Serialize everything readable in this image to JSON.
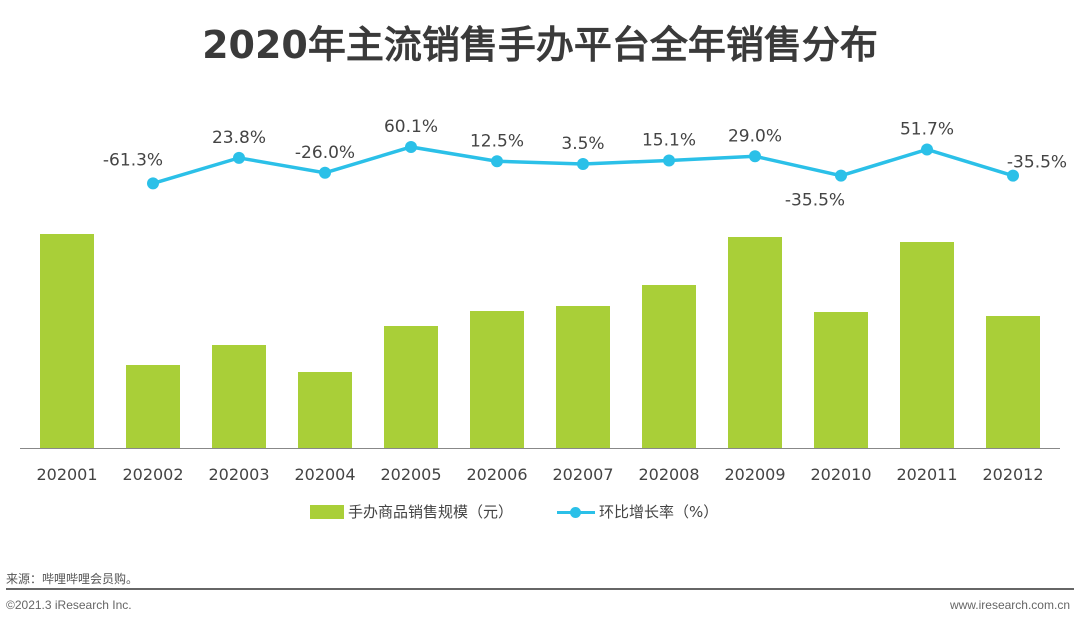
{
  "chart_data": {
    "type": "bar+line",
    "title": "2020年主流销售手办平台全年销售分布",
    "categories": [
      "202001",
      "202002",
      "202003",
      "202004",
      "202005",
      "202006",
      "202007",
      "202008",
      "202009",
      "202010",
      "202011",
      "202012"
    ],
    "series": [
      {
        "name": "手办商品销售规模（元）",
        "type": "bar",
        "color": "#a9cf38",
        "values": [
          214,
          83,
          103,
          76,
          122,
          137,
          142,
          163,
          211,
          136,
          206,
          132
        ]
      },
      {
        "name": "环比增长率（%）",
        "type": "line",
        "color": "#2bc0e8",
        "values": [
          null,
          -61.3,
          23.8,
          -26.0,
          60.1,
          12.5,
          3.5,
          15.1,
          29.0,
          -35.5,
          51.7,
          -35.5
        ],
        "labels": [
          "",
          "-61.3%",
          "23.8%",
          "-26.0%",
          "60.1%",
          "12.5%",
          "3.5%",
          "15.1%",
          "29.0%",
          "-35.5%",
          "51.7%",
          "-35.5%"
        ]
      }
    ],
    "bar_values_note_visible": false,
    "grid": false,
    "legend": "bottom"
  },
  "footer": {
    "source": "来源：哔哩哔哩会员购。",
    "copyright": "©2021.3 iResearch Inc.",
    "website": "www.iresearch.com.cn"
  }
}
